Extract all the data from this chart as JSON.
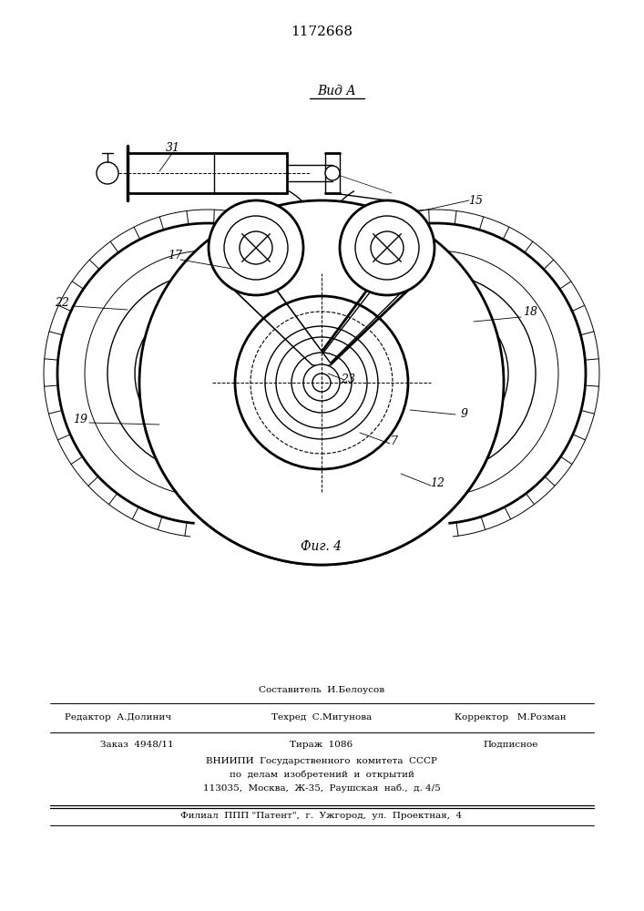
{
  "patent_number": "1172668",
  "view_label": "Вид А",
  "fig_label": "Фиг. 4",
  "bg_color": "#ffffff",
  "line_color": "#000000",
  "footer": {
    "line1_center_top": "Составитель  И.Белоусов",
    "line1_left": "Редактор  А.Долинич",
    "line1_center_bot": "Техред  С.Мигунова",
    "line1_right": "Корректор   М.Розман",
    "line2_left": "Заказ  4948/11",
    "line2_center": "Тираж  1086",
    "line2_right": "Подписное",
    "line3": "ВНИИПИ  Государственного  комитета  СССР",
    "line4": "по  делам  изобретений  и  открытий",
    "line5": "113035,  Москва,  Ж-35,  Раушская  наб.,  д. 4/5",
    "line6": "Филиал  ППП \"Патент\",  г.  Ужгород,  ул.  Проектная,  4"
  }
}
